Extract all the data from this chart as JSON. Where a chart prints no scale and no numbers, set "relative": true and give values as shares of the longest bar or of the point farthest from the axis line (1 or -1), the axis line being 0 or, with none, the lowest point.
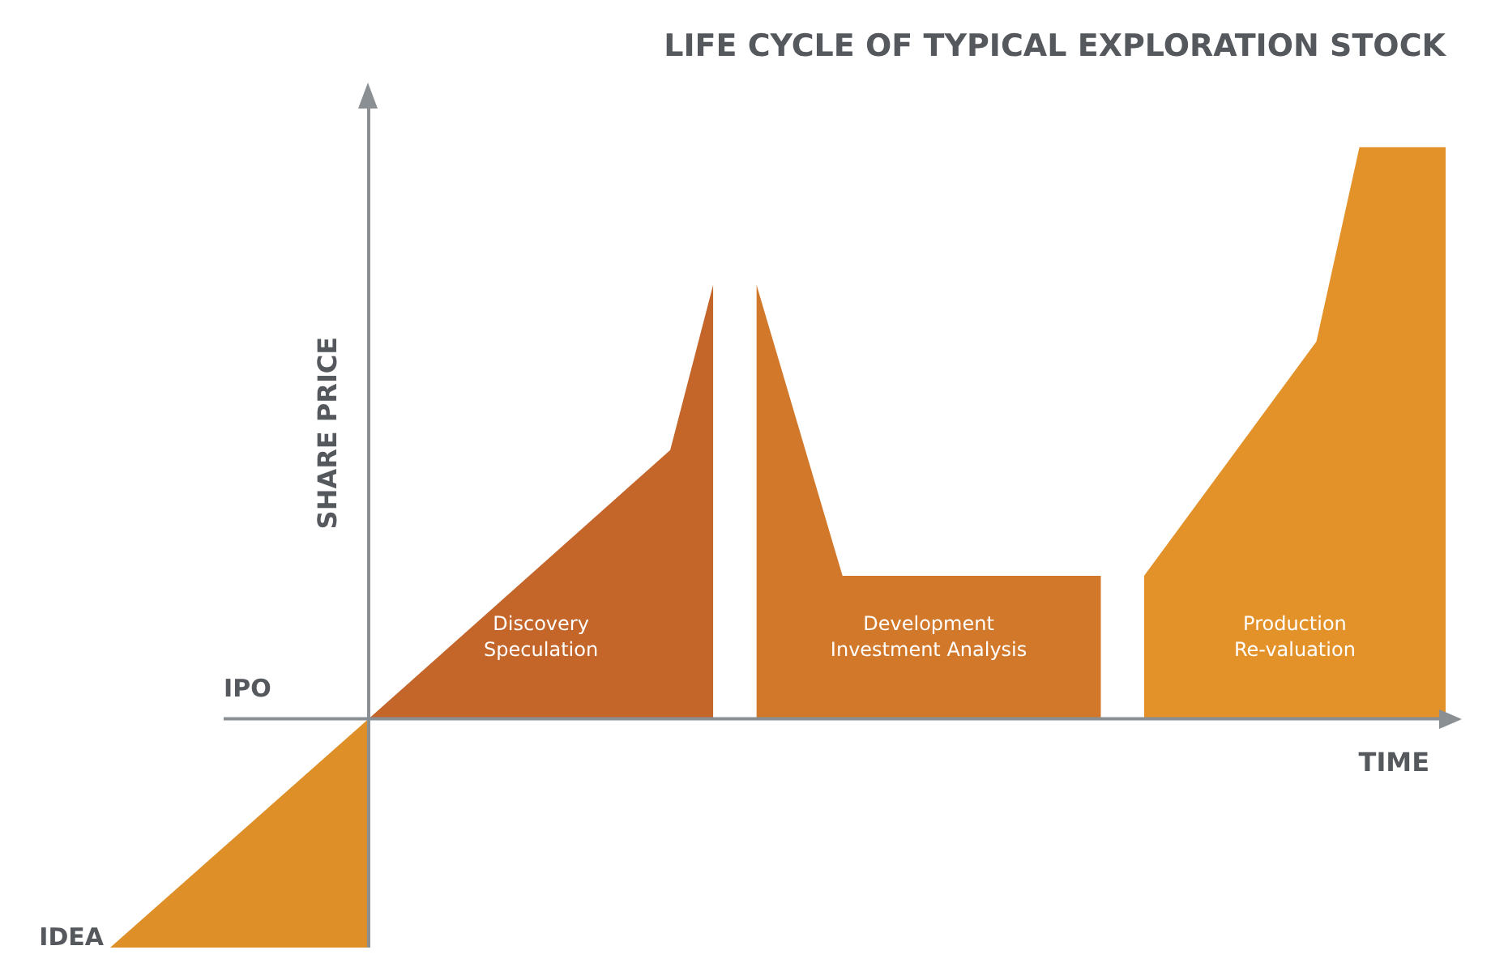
{
  "chart_data": {
    "type": "area",
    "title": "LIFE CYCLE OF TYPICAL EXPLORATION STOCK",
    "xlabel": "TIME",
    "ylabel": "SHARE PRICE",
    "relative": true,
    "categories": [
      null,
      null,
      null,
      null,
      null,
      null,
      null,
      null,
      null,
      null,
      null,
      null,
      null,
      null,
      null,
      null,
      null,
      null,
      null,
      null,
      null,
      null,
      null,
      null,
      null,
      null,
      null,
      null,
      null,
      null,
      null,
      null
    ],
    "series": [
      {
        "color": "#de8f28",
        "values": [
          -0.4,
          null,
          null,
          null,
          null,
          null,
          0,
          null,
          null,
          null,
          null,
          null,
          null,
          null,
          null,
          null,
          null,
          null,
          null,
          null,
          null,
          null,
          null,
          null,
          null,
          null,
          null,
          null,
          null,
          null,
          null,
          null
        ]
      },
      {
        "name": "Discovery Speculation",
        "color": "#c4652a",
        "values": [
          null,
          null,
          null,
          null,
          null,
          null,
          0,
          null,
          null,
          null,
          null,
          null,
          null,
          0.47,
          0.76,
          null,
          null,
          null,
          null,
          null,
          null,
          null,
          null,
          null,
          null,
          null,
          null,
          null,
          null,
          null,
          null,
          null
        ]
      },
      {
        "name": "Development Investment Analysis",
        "color": "#d2782a",
        "values": [
          null,
          null,
          null,
          null,
          null,
          null,
          null,
          null,
          null,
          null,
          null,
          null,
          null,
          null,
          null,
          0.76,
          null,
          0.25,
          null,
          null,
          null,
          null,
          null,
          0.25,
          null,
          null,
          null,
          null,
          null,
          null,
          null,
          null
        ]
      },
      {
        "name": "Production Re-valuation",
        "color": "#e3922a",
        "values": [
          null,
          null,
          null,
          null,
          null,
          null,
          null,
          null,
          null,
          null,
          null,
          null,
          null,
          null,
          null,
          null,
          null,
          null,
          null,
          null,
          null,
          null,
          null,
          null,
          0.25,
          null,
          null,
          null,
          0.66,
          1,
          null,
          1
        ]
      }
    ],
    "ref_lines": [
      {
        "axis": "y",
        "value": 0,
        "label": "IPO"
      }
    ],
    "annotations": [
      "IDEA"
    ],
    "legend": false
  }
}
